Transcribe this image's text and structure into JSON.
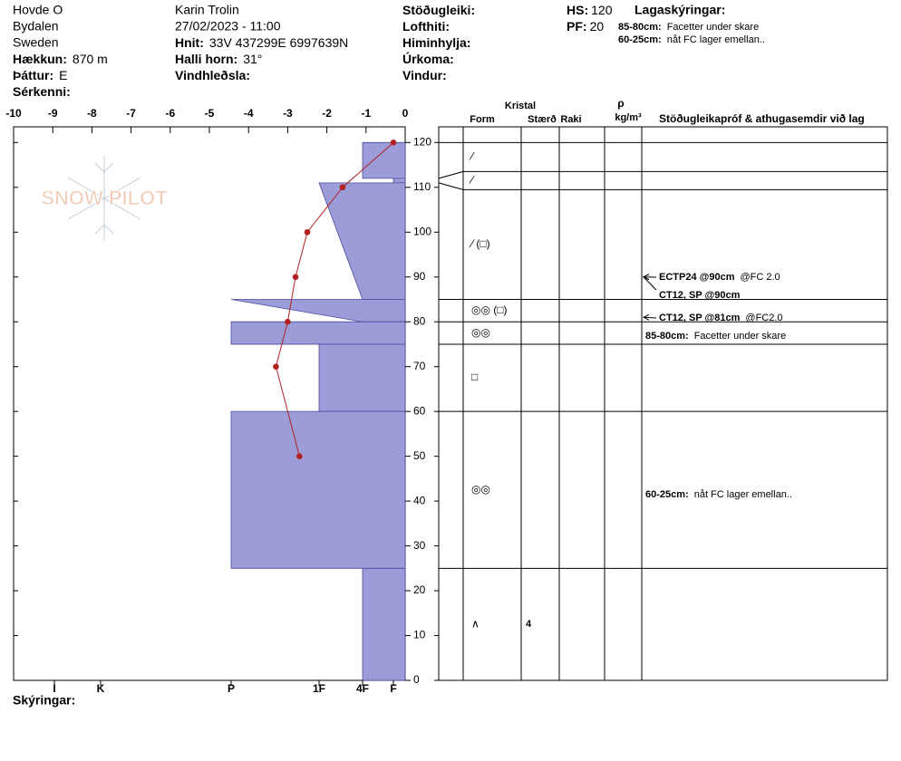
{
  "header": {
    "location": [
      "Hovde O",
      "Bydalen",
      "Sweden"
    ],
    "observer": "Karin  Trolin",
    "datetime": "27/02/2023 - 11:00",
    "column1": [
      {
        "label": "Hækkun:",
        "value": "870 m"
      },
      {
        "label": "Þáttur:",
        "value": "E"
      },
      {
        "label": "Sérkenni:"
      }
    ],
    "column2": [
      {
        "label": "Hnit:",
        "value": "33V 437299E 6997639N"
      },
      {
        "label": "Halli horn:",
        "value": "31°"
      },
      {
        "label": "Vindhleðsla:"
      }
    ],
    "column3": [
      {
        "label": "Stöðugleiki:"
      },
      {
        "label": "Lofthiti:"
      },
      {
        "label": "Himinhylja:"
      },
      {
        "label": "Úrkoma:"
      },
      {
        "label": "Vindur:"
      }
    ],
    "measurements": [
      {
        "label": "HS:",
        "value": 120
      },
      {
        "label": "PF:",
        "value": 20
      }
    ],
    "legend_title": "Lagaskýringar:",
    "legend": [
      {
        "label": "85-80cm:",
        "text": "Facetter under skare"
      },
      {
        "label": "60-25cm:",
        "text": "nåt FC lager emellan.."
      }
    ]
  },
  "logo": "SNOW PILOT",
  "footer": "Skýringar:",
  "chart_data": {
    "type": "snow-profile",
    "xlim": [
      -10,
      0
    ],
    "xticks": [
      -10,
      -9,
      -8,
      -7,
      -6,
      -5,
      -4,
      -3,
      -2,
      -1,
      0
    ],
    "ylim": [
      0,
      123.5
    ],
    "yticks": [
      0,
      10,
      20,
      30,
      40,
      50,
      60,
      70,
      80,
      90,
      100,
      110,
      120
    ],
    "temperature": {
      "color": "#b22222",
      "heights": [
        120,
        110,
        100,
        90,
        80,
        70,
        50
      ],
      "values": [
        -0.3,
        -1.6,
        -2.5,
        -2.8,
        -3.0,
        -3.3,
        -2.7
      ]
    },
    "hardness_color": "#9c9cd9",
    "hardness_ticks": [
      {
        "value": 6,
        "label": "I"
      },
      {
        "value": 5,
        "label": "K"
      },
      {
        "value": 4,
        "label": "P"
      },
      {
        "value": 3,
        "label": "1F"
      },
      {
        "value": 2,
        "label": "4F"
      },
      {
        "value": 1,
        "label": "F"
      }
    ],
    "layers": [
      {
        "top": 120,
        "bottom": 112,
        "hardness_top": 2,
        "hardness_bottom": 2,
        "form": "⁄"
      },
      {
        "top": 112,
        "bottom": 111,
        "hardness_top": 1,
        "hardness_bottom": 1,
        "form": "⁄"
      },
      {
        "top": 111,
        "bottom": 85,
        "hardness_top": 3,
        "hardness_bottom": 2,
        "form": "⁄ (□)"
      },
      {
        "top": 85,
        "bottom": 80,
        "hardness_top": 4,
        "hardness_bottom": 2,
        "form": "◎◎ (□)"
      },
      {
        "top": 80,
        "bottom": 75,
        "hardness_top": 4,
        "hardness_bottom": 4,
        "form": "◎◎"
      },
      {
        "top": 75,
        "bottom": 60,
        "hardness_top": 3,
        "hardness_bottom": 3,
        "form": "□"
      },
      {
        "top": 60,
        "bottom": 25,
        "hardness_top": 4,
        "hardness_bottom": 4,
        "form": "◎◎"
      },
      {
        "top": 25,
        "bottom": 0,
        "hardness_top": 2,
        "hardness_bottom": 2,
        "form": "∧",
        "size": 4
      }
    ],
    "table_headers": {
      "crystal": "Kristal",
      "form": "Form",
      "size": "Stærð",
      "wetness": "Raki",
      "density_symbol": "ρ",
      "density_unit": "kg/m³",
      "comments": "Stöðugleikapróf & athugasemdir við lag"
    },
    "tests": [
      {
        "height": 90,
        "label": "ECTP24 @90cm",
        "text": "@FC 2.0"
      },
      {
        "height": 90,
        "label": "CT12, SP @90cm"
      },
      {
        "height": 81,
        "label": "CT12, SP @81cm",
        "text": "@FC2.0"
      }
    ]
  }
}
